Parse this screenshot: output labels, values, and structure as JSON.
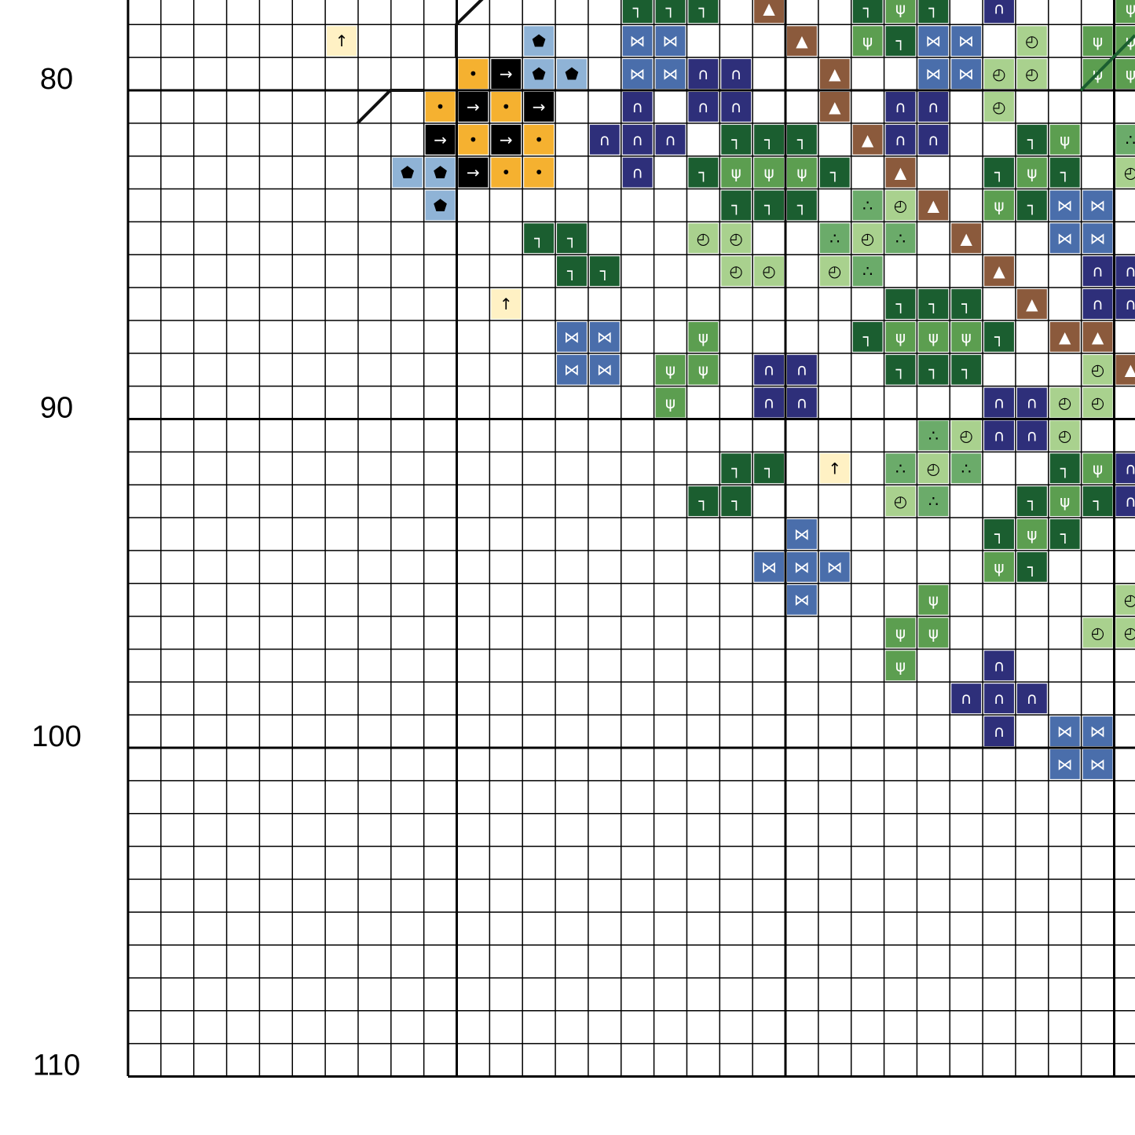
{
  "row_labels": [
    "80",
    "90",
    "100",
    "110"
  ]
}
